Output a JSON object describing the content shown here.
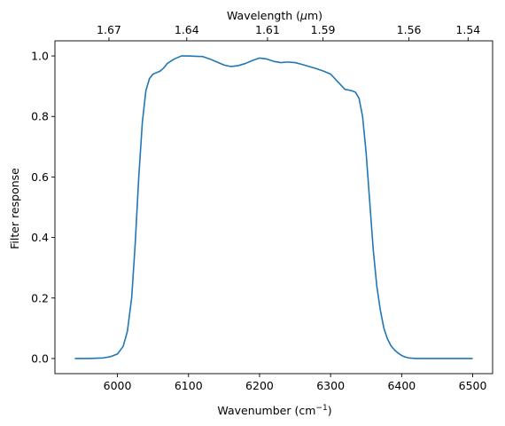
{
  "chart_data": {
    "type": "line",
    "title": "",
    "xlabel": "Wavenumber (cm",
    "xlabel_sup": "−1",
    "xlabel_suffix": ")",
    "ylabel": "Filter response",
    "top_axis": {
      "label_prefix": "Wavelength (",
      "label_mu": "μ",
      "label_suffix": "m)",
      "ticks": [
        {
          "label": "1.67",
          "value": 1.67
        },
        {
          "label": "1.64",
          "value": 1.64
        },
        {
          "label": "1.61",
          "value": 1.61
        },
        {
          "label": "1.59",
          "value": 1.59
        },
        {
          "label": "1.56",
          "value": 1.56
        },
        {
          "label": "1.54",
          "value": 1.54
        }
      ]
    },
    "xlim": [
      5912,
      6528
    ],
    "ylim": [
      -0.05,
      1.05
    ],
    "xticks": [
      6000,
      6100,
      6200,
      6300,
      6400,
      6500
    ],
    "yticks": [
      0.0,
      0.2,
      0.4,
      0.6,
      0.8,
      1.0
    ],
    "xtick_labels": [
      "6000",
      "6100",
      "6200",
      "6300",
      "6400",
      "6500"
    ],
    "ytick_labels": [
      "0.0",
      "0.2",
      "0.4",
      "0.6",
      "0.8",
      "1.0"
    ],
    "grid": false,
    "series": [
      {
        "color": "#1f77b4",
        "x": [
          5940,
          5960,
          5980,
          5990,
          6000,
          6008,
          6014,
          6020,
          6025,
          6030,
          6035,
          6040,
          6045,
          6050,
          6055,
          6060,
          6065,
          6070,
          6080,
          6090,
          6100,
          6110,
          6120,
          6130,
          6140,
          6150,
          6160,
          6170,
          6180,
          6190,
          6200,
          6210,
          6220,
          6230,
          6240,
          6250,
          6260,
          6270,
          6280,
          6290,
          6300,
          6310,
          6320,
          6330,
          6335,
          6340,
          6345,
          6350,
          6355,
          6360,
          6365,
          6370,
          6375,
          6380,
          6385,
          6390,
          6395,
          6400,
          6405,
          6410,
          6420,
          6430,
          6440,
          6460,
          6480,
          6500
        ],
        "y": [
          0.0,
          0.0,
          0.002,
          0.006,
          0.015,
          0.04,
          0.09,
          0.2,
          0.38,
          0.6,
          0.78,
          0.885,
          0.925,
          0.94,
          0.945,
          0.95,
          0.96,
          0.975,
          0.99,
          1.0,
          1.0,
          0.999,
          0.998,
          0.99,
          0.98,
          0.97,
          0.965,
          0.968,
          0.975,
          0.985,
          0.993,
          0.99,
          0.982,
          0.978,
          0.98,
          0.978,
          0.972,
          0.965,
          0.958,
          0.95,
          0.94,
          0.915,
          0.89,
          0.885,
          0.88,
          0.86,
          0.8,
          0.68,
          0.52,
          0.36,
          0.24,
          0.16,
          0.1,
          0.065,
          0.042,
          0.028,
          0.018,
          0.01,
          0.005,
          0.002,
          0.0,
          0.0,
          0.0,
          0.0,
          0.0,
          0.0
        ]
      }
    ]
  }
}
